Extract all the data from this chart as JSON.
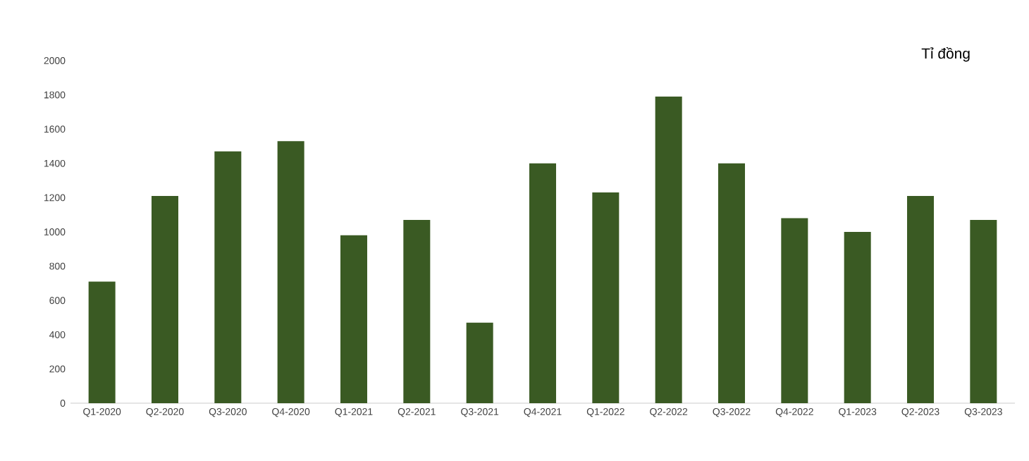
{
  "chart_data": {
    "type": "bar",
    "categories": [
      "Q1-2020",
      "Q2-2020",
      "Q3-2020",
      "Q4-2020",
      "Q1-2021",
      "Q2-2021",
      "Q3-2021",
      "Q4-2021",
      "Q1-2022",
      "Q2-2022",
      "Q3-2022",
      "Q4-2022",
      "Q1-2023",
      "Q2-2023",
      "Q3-2023"
    ],
    "values": [
      710,
      1210,
      1470,
      1530,
      980,
      1070,
      470,
      1400,
      1230,
      1790,
      1400,
      1080,
      1000,
      1210,
      1070
    ],
    "color": "#3a5a23",
    "ylim": [
      0,
      2000
    ],
    "yticks": [
      0,
      200,
      400,
      600,
      800,
      1000,
      1200,
      1400,
      1600,
      1800,
      2000
    ],
    "grid": false,
    "annotations": [
      "Tỉ đồng"
    ]
  }
}
